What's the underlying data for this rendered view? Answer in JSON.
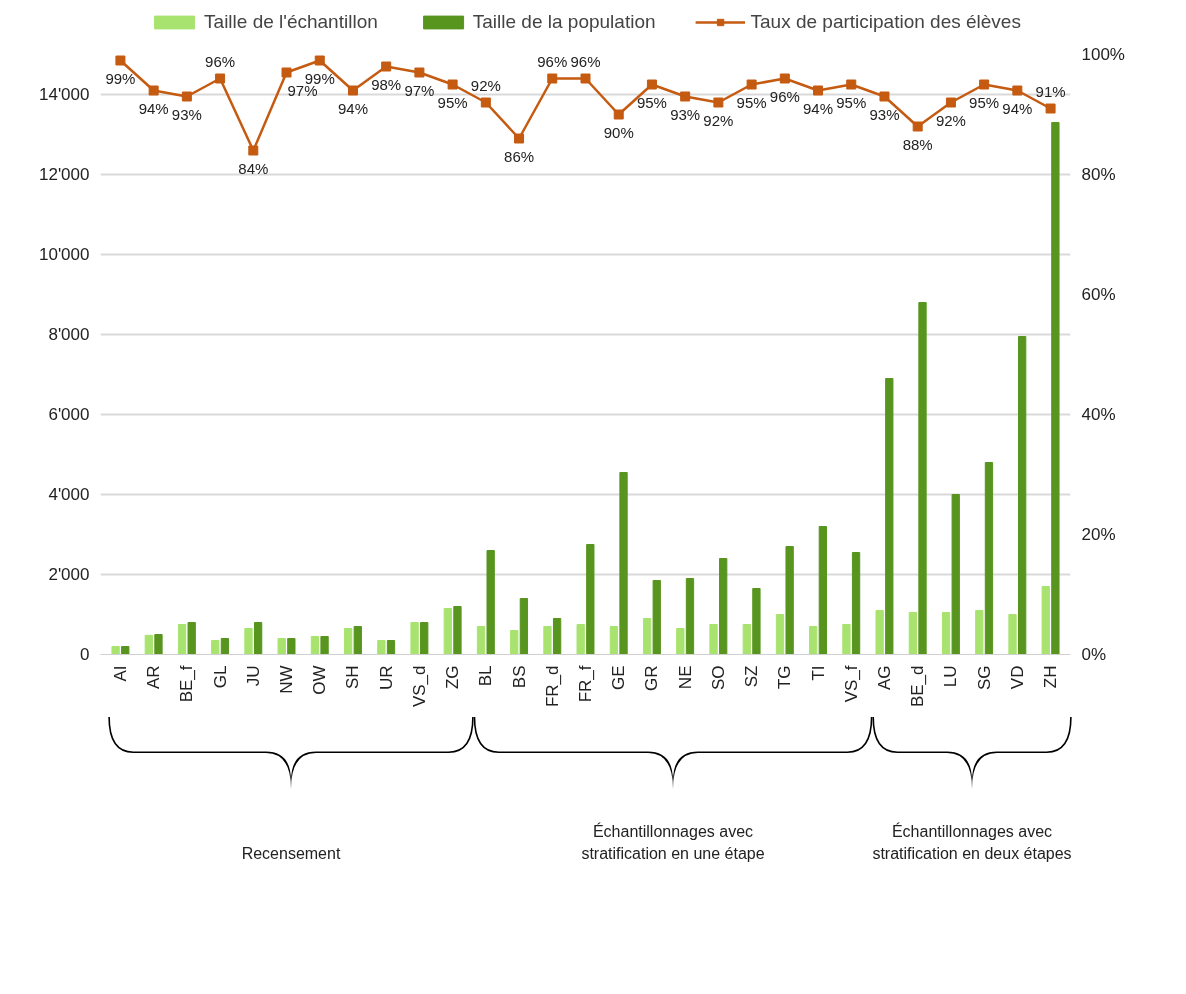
{
  "chart_data": {
    "type": "bar",
    "categories": [
      "AI",
      "AR",
      "BE_f",
      "GL",
      "JU",
      "NW",
      "OW",
      "SH",
      "UR",
      "VS_d",
      "ZG",
      "BL",
      "BS",
      "FR_d",
      "FR_f",
      "GE",
      "GR",
      "NE",
      "SO",
      "SZ",
      "TG",
      "TI",
      "VS_f",
      "AG",
      "BE_d",
      "LU",
      "SG",
      "VD",
      "ZH"
    ],
    "series": [
      {
        "name": "Taille de l'échantillon",
        "color": "#a9e36f",
        "values": [
          200,
          480,
          750,
          350,
          650,
          400,
          450,
          650,
          350,
          800,
          1150,
          700,
          600,
          700,
          750,
          700,
          900,
          650,
          750,
          750,
          1000,
          700,
          750,
          1100,
          1050,
          1050,
          1100,
          1000,
          1700
        ]
      },
      {
        "name": "Taille de la population",
        "color": "#58951f",
        "values": [
          200,
          500,
          800,
          400,
          800,
          400,
          450,
          700,
          350,
          800,
          1200,
          2600,
          1400,
          900,
          2750,
          4550,
          1850,
          1900,
          2400,
          1650,
          2700,
          3200,
          2550,
          6900,
          8800,
          4000,
          4800,
          7950,
          13300
        ]
      },
      {
        "name": "Taux de participation des élèves",
        "type": "line",
        "axis": "y2",
        "color": "#c55a11",
        "marker": "square",
        "values": [
          99,
          94,
          93,
          96,
          84,
          97,
          99,
          94,
          98,
          97,
          95,
          92,
          86,
          96,
          96,
          90,
          95,
          93,
          92,
          95,
          96,
          94,
          95,
          93,
          88,
          92,
          95,
          94,
          91
        ],
        "value_labels": [
          "99%",
          "94%",
          "93%",
          "96%",
          "84%",
          "97%",
          "99%",
          "94%",
          "98%",
          "97%",
          "95%",
          "92%",
          "86%",
          "96%",
          "96%",
          "90%",
          "95%",
          "93%",
          "92%",
          "95%",
          "96%",
          "94%",
          "95%",
          "93%",
          "88%",
          "92%",
          "95%",
          "94%",
          "91%"
        ]
      }
    ],
    "ylim": [
      0,
      15000
    ],
    "yticks": [
      0,
      {
        "value": 2000,
        "label": "2'000"
      },
      {
        "value": 4000,
        "label": "4'000"
      },
      {
        "value": 6000,
        "label": "6'000"
      },
      {
        "value": 8000,
        "label": "8'000"
      },
      {
        "value": 10000,
        "label": "10'000"
      },
      {
        "value": 12000,
        "label": "12'000"
      },
      {
        "value": 14000,
        "label": "14'000"
      }
    ],
    "y2lim": [
      0,
      100
    ],
    "y2ticks": [
      {
        "value": 0,
        "label": "0%"
      },
      {
        "value": 20,
        "label": "20%"
      },
      {
        "value": 40,
        "label": "40%"
      },
      {
        "value": 60,
        "label": "60%"
      },
      {
        "value": 80,
        "label": "80%"
      },
      {
        "value": 100,
        "label": "100%"
      }
    ],
    "grid": "y",
    "legend": "top",
    "annotations": [
      "Recensement",
      "Échantillonnages avec stratification en une étape",
      "Échantillonnages avec stratification en deux étapes"
    ]
  }
}
